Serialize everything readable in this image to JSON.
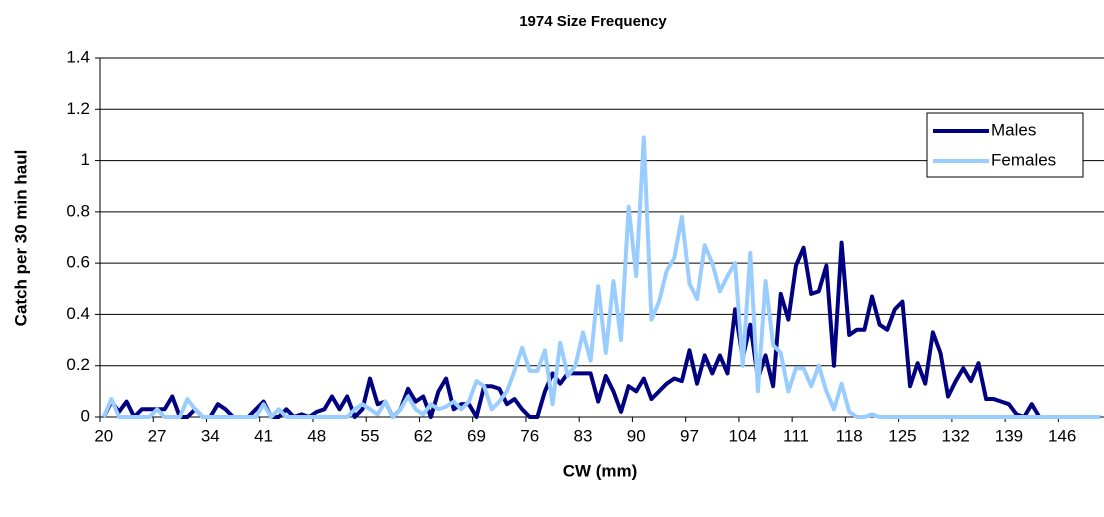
{
  "chart_data": {
    "type": "line",
    "title": "1974 Size Frequency",
    "x_label": "CW (mm)",
    "y_label": "Catch per 30 min haul",
    "categories": [
      "20",
      null,
      null,
      null,
      null,
      null,
      null,
      "27",
      null,
      null,
      null,
      null,
      null,
      null,
      "34",
      null,
      null,
      null,
      null,
      null,
      null,
      "41",
      null,
      null,
      null,
      null,
      null,
      null,
      "48",
      null,
      null,
      null,
      null,
      null,
      null,
      "55",
      null,
      null,
      null,
      null,
      null,
      null,
      "62",
      null,
      null,
      null,
      null,
      null,
      null,
      "69",
      null,
      null,
      null,
      null,
      null,
      null,
      "76",
      null,
      null,
      null,
      null,
      null,
      null,
      "83",
      null,
      null,
      null,
      null,
      null,
      null,
      "90",
      null,
      null,
      null,
      null,
      null,
      null,
      "97",
      null,
      null,
      null,
      null,
      null,
      null,
      "104",
      null,
      null,
      null,
      null,
      null,
      null,
      "111",
      null,
      null,
      null,
      null,
      null,
      null,
      "118",
      null,
      null,
      null,
      null,
      null,
      null,
      "125",
      null,
      null,
      null,
      null,
      null,
      null,
      "132",
      null,
      null,
      null,
      null,
      null,
      null,
      "139",
      null,
      null,
      null,
      null,
      null,
      null,
      "146",
      null,
      null,
      null,
      null,
      null
    ],
    "series": [
      {
        "name": "Males",
        "color": "#000080",
        "values": [
          0,
          0.06,
          0.02,
          0.06,
          0,
          0.03,
          0.03,
          0.03,
          0.03,
          0.08,
          0,
          0,
          0.03,
          0,
          0,
          0.05,
          0.03,
          0,
          0,
          0,
          0.03,
          0.06,
          0,
          0,
          0.03,
          0,
          0.01,
          0,
          0.02,
          0.03,
          0.08,
          0.03,
          0.08,
          0,
          0.03,
          0.15,
          0.05,
          0.06,
          0,
          0.03,
          0.11,
          0.06,
          0.08,
          0,
          0.1,
          0.15,
          0.03,
          0.05,
          0.05,
          0,
          0.12,
          0.12,
          0.11,
          0.05,
          0.07,
          0.03,
          0,
          0,
          0.1,
          0.17,
          0.13,
          0.17,
          0.17,
          0.17,
          0.17,
          0.06,
          0.16,
          0.1,
          0.02,
          0.12,
          0.1,
          0.15,
          0.07,
          0.1,
          0.13,
          0.15,
          0.14,
          0.26,
          0.13,
          0.24,
          0.17,
          0.24,
          0.17,
          0.42,
          0.23,
          0.36,
          0.15,
          0.24,
          0.12,
          0.48,
          0.38,
          0.59,
          0.66,
          0.48,
          0.49,
          0.59,
          0.2,
          0.68,
          0.32,
          0.34,
          0.34,
          0.47,
          0.36,
          0.34,
          0.42,
          0.45,
          0.12,
          0.21,
          0.13,
          0.33,
          0.25,
          0.08,
          0.14,
          0.19,
          0.14,
          0.21,
          0.07,
          0.07,
          0.06,
          0.05,
          0.01,
          0,
          0.05,
          0,
          0,
          0,
          0,
          0,
          0,
          0,
          0,
          0
        ]
      },
      {
        "name": "Females",
        "color": "#99ccff",
        "values": [
          0,
          0.07,
          0,
          0,
          0,
          0,
          0,
          0.03,
          0,
          0,
          0,
          0.07,
          0.03,
          0,
          0,
          0,
          0,
          0,
          0,
          0,
          0,
          0.05,
          0,
          0.03,
          0,
          0,
          0,
          0,
          0,
          0,
          0,
          0,
          0,
          0.03,
          0.05,
          0.03,
          0.01,
          0.06,
          0,
          0.03,
          0.08,
          0.03,
          0.01,
          0.05,
          0.03,
          0.04,
          0.06,
          0.03,
          0.06,
          0.14,
          0.12,
          0.03,
          0.06,
          0.1,
          0.18,
          0.27,
          0.18,
          0.18,
          0.26,
          0.05,
          0.29,
          0.16,
          0.2,
          0.33,
          0.22,
          0.51,
          0.25,
          0.53,
          0.3,
          0.82,
          0.55,
          1.09,
          0.38,
          0.45,
          0.57,
          0.62,
          0.78,
          0.52,
          0.46,
          0.67,
          0.6,
          0.49,
          0.55,
          0.6,
          0.2,
          0.64,
          0.1,
          0.53,
          0.28,
          0.25,
          0.1,
          0.19,
          0.19,
          0.12,
          0.2,
          0.1,
          0.03,
          0.13,
          0.02,
          0,
          0,
          0.01,
          0,
          0,
          0,
          0,
          0,
          0,
          0,
          0,
          0,
          0,
          0,
          0,
          0,
          0,
          0,
          0,
          0,
          0,
          0,
          0,
          0,
          0,
          0,
          0,
          0,
          0,
          0,
          0,
          0,
          0
        ]
      }
    ],
    "ylim": [
      0,
      1.4
    ],
    "yticks": [
      0,
      0.2,
      0.4,
      0.6,
      0.8,
      1,
      1.2,
      1.4
    ],
    "grid": true,
    "legend": "upper right"
  }
}
